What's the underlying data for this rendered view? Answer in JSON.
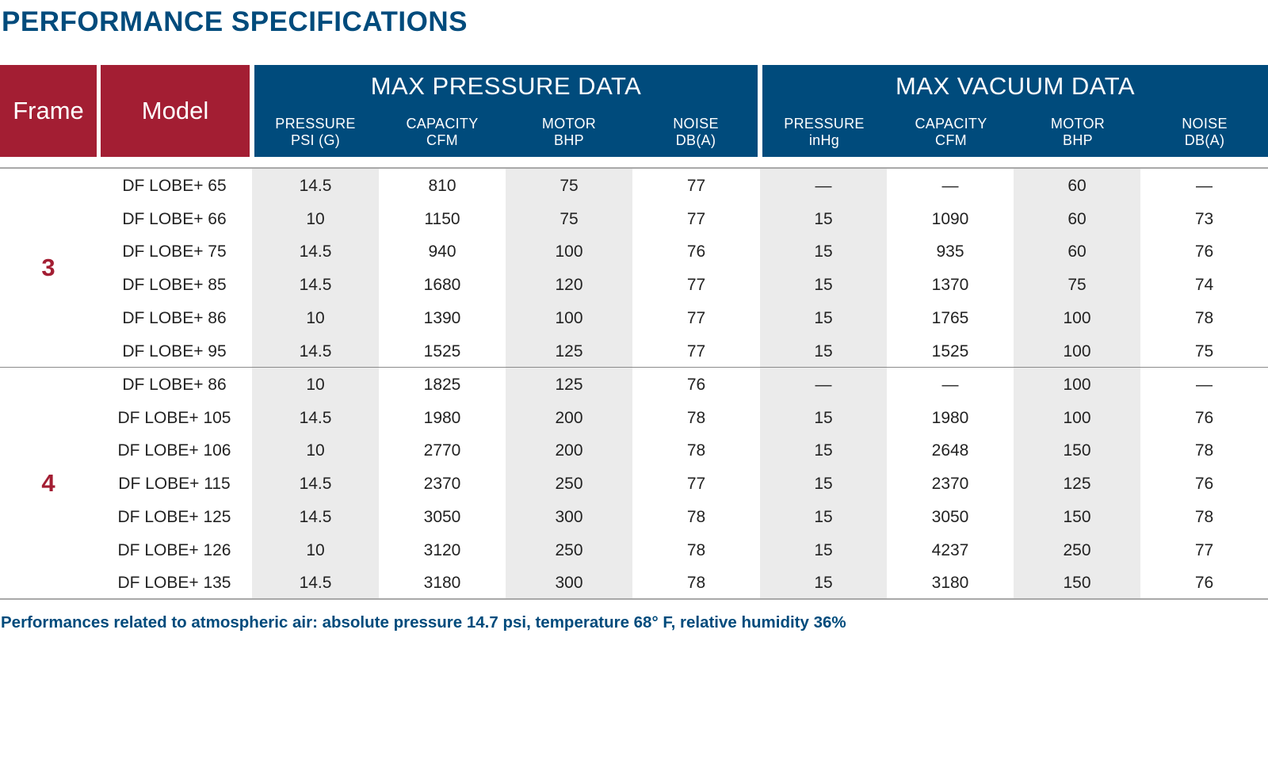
{
  "title": "PERFORMANCE SPECIFICATIONS",
  "headers": {
    "frame": "Frame",
    "model": "Model",
    "pressure_group": "MAX PRESSURE DATA",
    "vacuum_group": "MAX VACUUM DATA",
    "pressure_cols": [
      {
        "line1": "PRESSURE",
        "line2": "PSI (G)"
      },
      {
        "line1": "CAPACITY",
        "line2": "CFM"
      },
      {
        "line1": "MOTOR",
        "line2": "BHP"
      },
      {
        "line1": "NOISE",
        "line2": "DB(A)"
      }
    ],
    "vacuum_cols": [
      {
        "line1": "PRESSURE",
        "line2": "inHg"
      },
      {
        "line1": "CAPACITY",
        "line2": "CFM"
      },
      {
        "line1": "MOTOR",
        "line2": "BHP"
      },
      {
        "line1": "NOISE",
        "line2": "DB(A)"
      }
    ]
  },
  "frames": [
    {
      "frame": "3",
      "rows": [
        {
          "model": "DF LOBE+ 65",
          "p_pressure": "14.5",
          "p_capacity": "810",
          "p_motor": "75",
          "p_noise": "77",
          "v_pressure": "—",
          "v_capacity": "—",
          "v_motor": "60",
          "v_noise": "—"
        },
        {
          "model": "DF LOBE+ 66",
          "p_pressure": "10",
          "p_capacity": "1150",
          "p_motor": "75",
          "p_noise": "77",
          "v_pressure": "15",
          "v_capacity": "1090",
          "v_motor": "60",
          "v_noise": "73"
        },
        {
          "model": "DF LOBE+ 75",
          "p_pressure": "14.5",
          "p_capacity": "940",
          "p_motor": "100",
          "p_noise": "76",
          "v_pressure": "15",
          "v_capacity": "935",
          "v_motor": "60",
          "v_noise": "76"
        },
        {
          "model": "DF LOBE+ 85",
          "p_pressure": "14.5",
          "p_capacity": "1680",
          "p_motor": "120",
          "p_noise": "77",
          "v_pressure": "15",
          "v_capacity": "1370",
          "v_motor": "75",
          "v_noise": "74"
        },
        {
          "model": "DF LOBE+ 86",
          "p_pressure": "10",
          "p_capacity": "1390",
          "p_motor": "100",
          "p_noise": "77",
          "v_pressure": "15",
          "v_capacity": "1765",
          "v_motor": "100",
          "v_noise": "78"
        },
        {
          "model": "DF LOBE+ 95",
          "p_pressure": "14.5",
          "p_capacity": "1525",
          "p_motor": "125",
          "p_noise": "77",
          "v_pressure": "15",
          "v_capacity": "1525",
          "v_motor": "100",
          "v_noise": "75"
        }
      ]
    },
    {
      "frame": "4",
      "rows": [
        {
          "model": "DF LOBE+ 86",
          "p_pressure": "10",
          "p_capacity": "1825",
          "p_motor": "125",
          "p_noise": "76",
          "v_pressure": "—",
          "v_capacity": "—",
          "v_motor": "100",
          "v_noise": "—"
        },
        {
          "model": "DF LOBE+ 105",
          "p_pressure": "14.5",
          "p_capacity": "1980",
          "p_motor": "200",
          "p_noise": "78",
          "v_pressure": "15",
          "v_capacity": "1980",
          "v_motor": "100",
          "v_noise": "76"
        },
        {
          "model": "DF LOBE+ 106",
          "p_pressure": "10",
          "p_capacity": "2770",
          "p_motor": "200",
          "p_noise": "78",
          "v_pressure": "15",
          "v_capacity": "2648",
          "v_motor": "150",
          "v_noise": "78"
        },
        {
          "model": "DF LOBE+ 115",
          "p_pressure": "14.5",
          "p_capacity": "2370",
          "p_motor": "250",
          "p_noise": "77",
          "v_pressure": "15",
          "v_capacity": "2370",
          "v_motor": "125",
          "v_noise": "76"
        },
        {
          "model": "DF LOBE+ 125",
          "p_pressure": "14.5",
          "p_capacity": "3050",
          "p_motor": "300",
          "p_noise": "78",
          "v_pressure": "15",
          "v_capacity": "3050",
          "v_motor": "150",
          "v_noise": "78"
        },
        {
          "model": "DF LOBE+ 126",
          "p_pressure": "10",
          "p_capacity": "3120",
          "p_motor": "250",
          "p_noise": "78",
          "v_pressure": "15",
          "v_capacity": "4237",
          "v_motor": "250",
          "v_noise": "77"
        },
        {
          "model": "DF LOBE+ 135",
          "p_pressure": "14.5",
          "p_capacity": "3180",
          "p_motor": "300",
          "p_noise": "78",
          "v_pressure": "15",
          "v_capacity": "3180",
          "v_motor": "150",
          "v_noise": "76"
        }
      ]
    }
  ],
  "footnote": "Performances related to atmospheric air: absolute pressure 14.7 psi, temperature 68° F, relative humidity 36%",
  "colors": {
    "brand_blue": "#004b7c",
    "brand_red": "#a31e33",
    "shade": "#ebebeb"
  }
}
